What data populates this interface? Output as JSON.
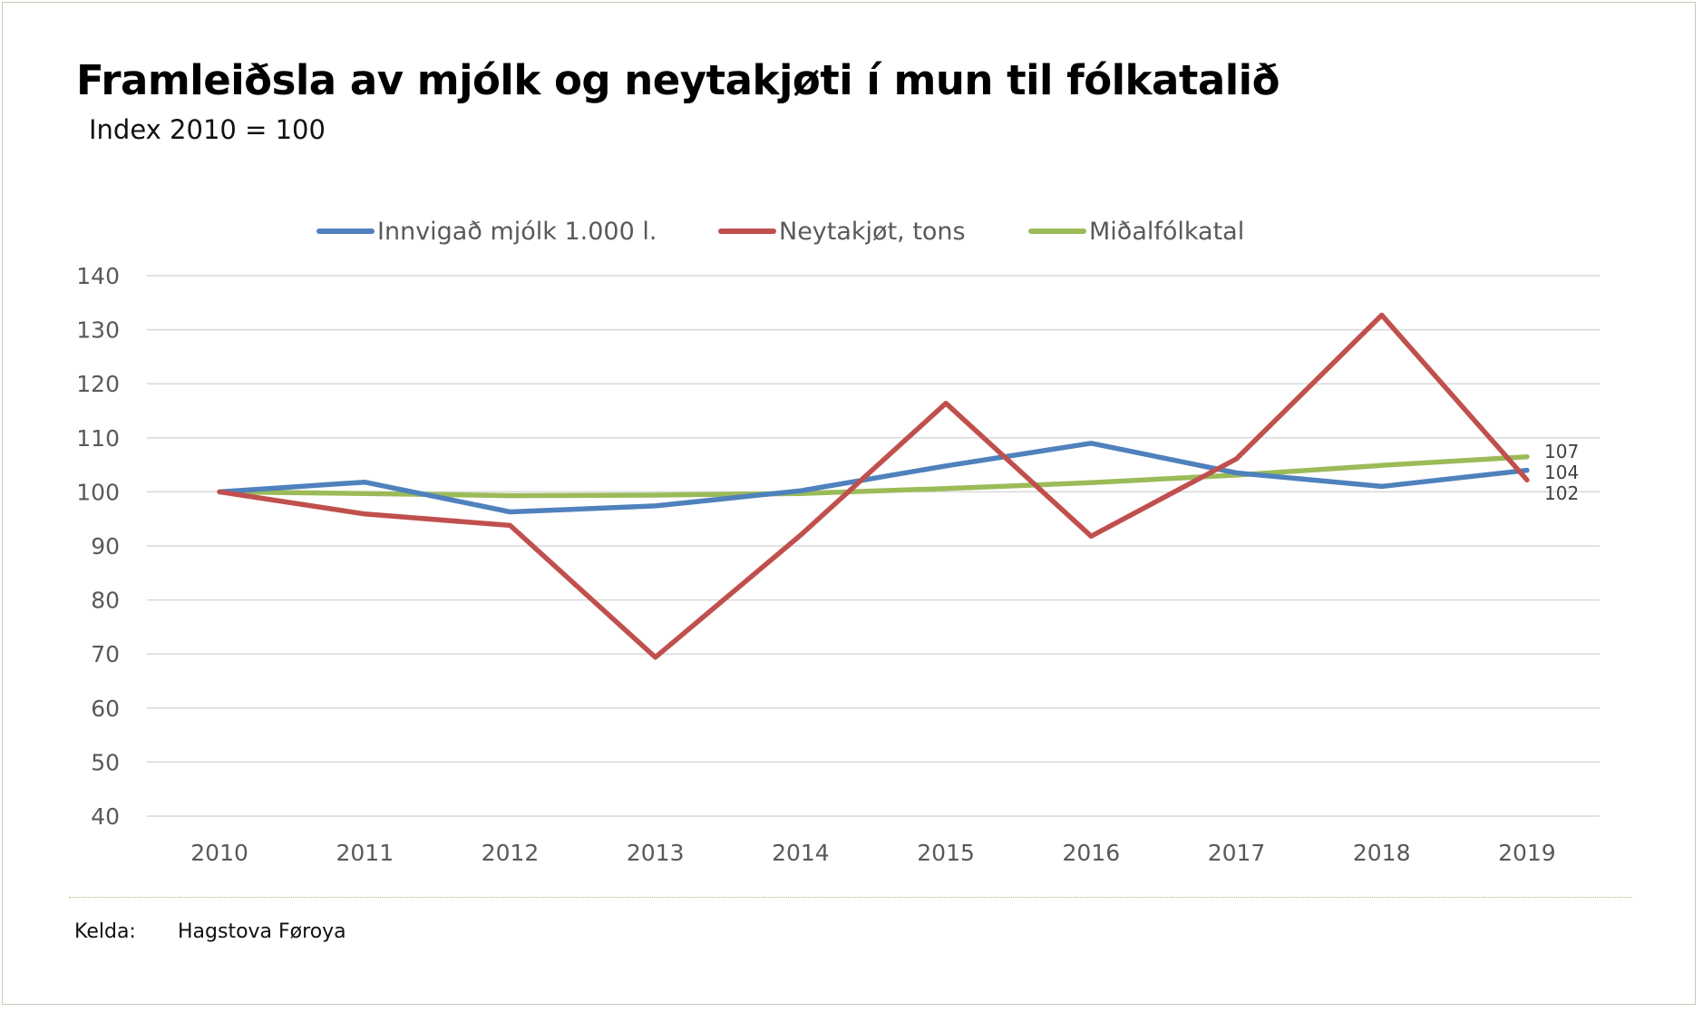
{
  "title": "Framleiðsla av mjólk og neytakjøti í mun til fólkatalið",
  "subtitle": "Index 2010 = 100",
  "source": {
    "label": "Kelda:",
    "value": "Hagstova Føroya"
  },
  "colors": {
    "milk": "#4f81bd",
    "beef": "#c0504d",
    "population": "#9bbb59",
    "grid": "#d9d9d9"
  },
  "chart_data": {
    "type": "line",
    "title": "Framleiðsla av mjólk og neytakjøti í mun til fólkatalið",
    "subtitle": "Index 2010 = 100",
    "xlabel": "",
    "ylabel": "",
    "categories": [
      "2010",
      "2011",
      "2012",
      "2013",
      "2014",
      "2015",
      "2016",
      "2017",
      "2018",
      "2019"
    ],
    "ylim": [
      40,
      140
    ],
    "yticks": [
      40,
      50,
      60,
      70,
      80,
      90,
      100,
      110,
      120,
      130,
      140
    ],
    "grid": true,
    "legend_position": "top",
    "series": [
      {
        "name": "Innvigað mjólk 1.000 l.",
        "color": "#4f81bd",
        "values": [
          100,
          101.8,
          96.3,
          97.4,
          100.2,
          104.8,
          109,
          103.5,
          101,
          104
        ],
        "end_label": "104"
      },
      {
        "name": "Neytakjøt, tons",
        "color": "#c0504d",
        "values": [
          100,
          95.9,
          93.8,
          69.4,
          92,
          116.4,
          91.8,
          106.1,
          132.7,
          102.2
        ],
        "end_label": "102"
      },
      {
        "name": "Miðalfólkatal",
        "color": "#9bbb59",
        "values": [
          100,
          99.7,
          99.3,
          99.4,
          99.7,
          100.6,
          101.7,
          103.1,
          104.9,
          106.5
        ],
        "end_label": "107"
      }
    ]
  }
}
